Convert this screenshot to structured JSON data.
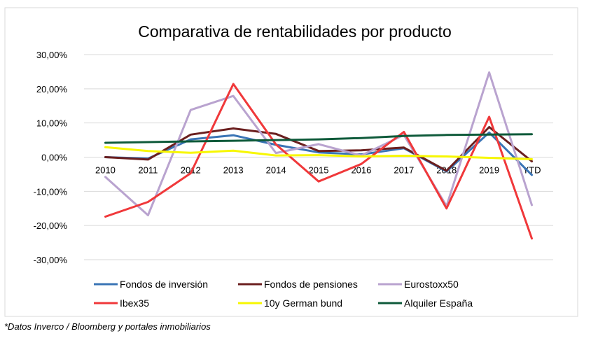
{
  "chart_data": {
    "type": "line",
    "title": "Comparativa de rentabilidades por producto",
    "categories": [
      "2010",
      "2011",
      "2012",
      "2013",
      "2014",
      "2015",
      "2016",
      "2017",
      "2018",
      "2019",
      "YTD"
    ],
    "y_ticks": [
      "30,00%",
      "20,00%",
      "10,00%",
      "0,00%",
      "-10,00%",
      "-20,00%",
      "-30,00%"
    ],
    "ylim": [
      -30,
      30
    ],
    "grid": true,
    "legend_position": "bottom",
    "series": [
      {
        "name": "Fondos de inversión",
        "color": "#3a74b5",
        "values": [
          0.0,
          -0.4,
          5.2,
          6.4,
          3.6,
          1.4,
          0.8,
          2.6,
          -4.2,
          7.2,
          -5.2
        ]
      },
      {
        "name": "Fondos de pensiones",
        "color": "#6b1f1f",
        "values": [
          0.0,
          -0.7,
          6.6,
          8.4,
          6.8,
          1.8,
          2.0,
          2.8,
          -4.0,
          8.8,
          -1.2
        ]
      },
      {
        "name": "Eurostoxx50",
        "color": "#b9a3cf",
        "values": [
          -5.8,
          -17.0,
          13.8,
          17.9,
          1.2,
          3.8,
          0.5,
          6.5,
          -14.3,
          24.8,
          -14.0
        ]
      },
      {
        "name": "Ibex35",
        "color": "#f0383a",
        "values": [
          -17.4,
          -13.1,
          -4.7,
          21.4,
          3.7,
          -7.1,
          -2.0,
          7.4,
          -15.0,
          11.8,
          -23.8
        ]
      },
      {
        "name": "10y German bund",
        "color": "#f7f700",
        "values": [
          2.9,
          1.8,
          1.3,
          1.9,
          0.5,
          0.6,
          0.2,
          0.4,
          0.2,
          -0.2,
          -0.6
        ]
      },
      {
        "name": "Alquiler España",
        "color": "#0e5a3a",
        "values": [
          4.2,
          4.4,
          4.6,
          4.8,
          5.0,
          5.2,
          5.6,
          6.2,
          6.5,
          6.6,
          6.7
        ]
      }
    ]
  },
  "footnote": "*Datos Inverco / Bloomberg y portales inmobiliarios"
}
